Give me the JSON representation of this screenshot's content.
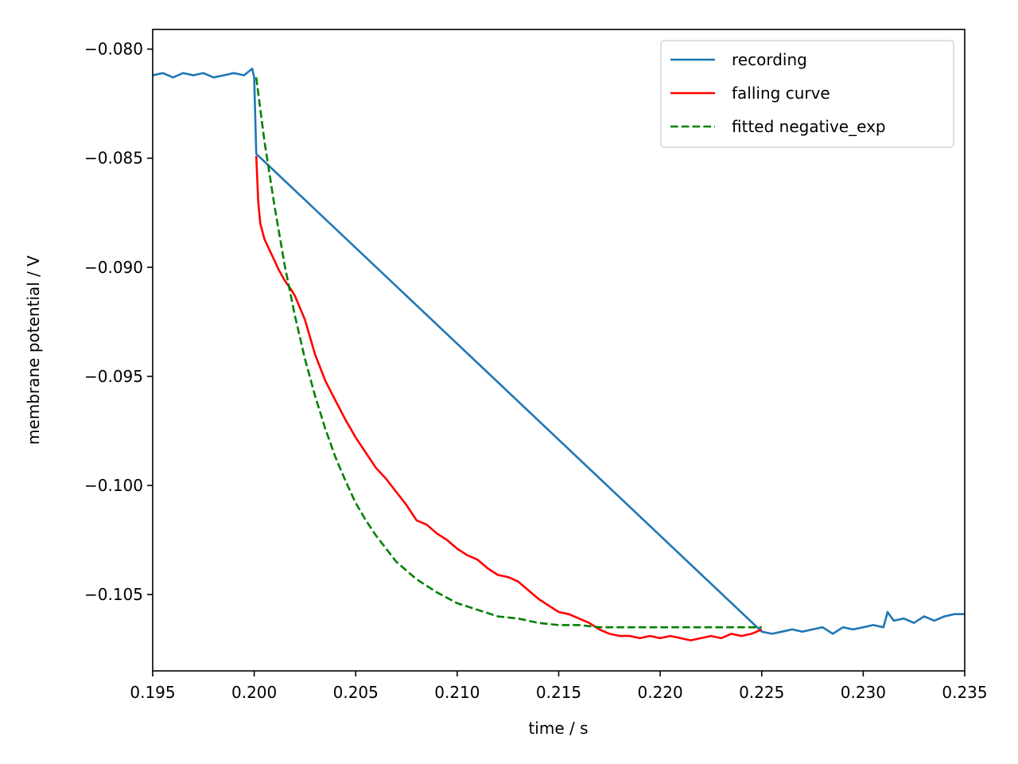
{
  "chart_data": {
    "type": "line",
    "xlabel": "time / s",
    "ylabel": "membrane potential / V",
    "xlim": [
      0.195,
      0.235
    ],
    "ylim": [
      -0.1085,
      -0.0791
    ],
    "xticks": [
      0.195,
      0.2,
      0.205,
      0.21,
      0.215,
      0.22,
      0.225,
      0.23,
      0.235
    ],
    "xtick_labels": [
      "0.195",
      "0.200",
      "0.205",
      "0.210",
      "0.215",
      "0.220",
      "0.225",
      "0.230",
      "0.235"
    ],
    "yticks": [
      -0.08,
      -0.085,
      -0.09,
      -0.095,
      -0.1,
      -0.105
    ],
    "ytick_labels": [
      "−0.080",
      "−0.085",
      "−0.090",
      "−0.095",
      "−0.100",
      "−0.105"
    ],
    "legend_position": "top-right",
    "grid": false,
    "series": [
      {
        "name": "recording",
        "color": "#1f77b4",
        "style": "solid",
        "x": [
          0.195,
          0.1955,
          0.196,
          0.1965,
          0.197,
          0.1975,
          0.198,
          0.1985,
          0.199,
          0.1995,
          0.1999,
          0.2,
          0.2001,
          0.225,
          0.2255,
          0.226,
          0.2265,
          0.227,
          0.2275,
          0.228,
          0.2285,
          0.229,
          0.2295,
          0.23,
          0.2305,
          0.231,
          0.2312,
          0.2315,
          0.232,
          0.2325,
          0.233,
          0.2335,
          0.234,
          0.2345,
          0.235
        ],
        "y": [
          -0.0812,
          -0.0811,
          -0.0813,
          -0.0811,
          -0.0812,
          -0.0811,
          -0.0813,
          -0.0812,
          -0.0811,
          -0.0812,
          -0.0809,
          -0.0813,
          -0.0848,
          -0.1067,
          -0.1068,
          -0.1067,
          -0.1066,
          -0.1067,
          -0.1066,
          -0.1065,
          -0.1068,
          -0.1065,
          -0.1066,
          -0.1065,
          -0.1064,
          -0.1065,
          -0.1058,
          -0.1062,
          -0.1061,
          -0.1063,
          -0.106,
          -0.1062,
          -0.106,
          -0.1059,
          -0.1059
        ]
      },
      {
        "name": "falling curve",
        "color": "#ff0000",
        "style": "solid",
        "x": [
          0.2001,
          0.2002,
          0.2003,
          0.2005,
          0.2008,
          0.201,
          0.2012,
          0.2015,
          0.2018,
          0.202,
          0.2025,
          0.203,
          0.2035,
          0.204,
          0.2045,
          0.205,
          0.2055,
          0.206,
          0.2065,
          0.207,
          0.2075,
          0.208,
          0.2085,
          0.209,
          0.2095,
          0.21,
          0.2105,
          0.211,
          0.2115,
          0.212,
          0.2125,
          0.213,
          0.2135,
          0.214,
          0.2145,
          0.215,
          0.2155,
          0.216,
          0.2165,
          0.217,
          0.2175,
          0.218,
          0.2185,
          0.219,
          0.2195,
          0.22,
          0.2205,
          0.221,
          0.2215,
          0.222,
          0.2225,
          0.223,
          0.2235,
          0.224,
          0.2245,
          0.225
        ],
        "y": [
          -0.0849,
          -0.087,
          -0.088,
          -0.0887,
          -0.0893,
          -0.0897,
          -0.0901,
          -0.0906,
          -0.091,
          -0.0913,
          -0.0924,
          -0.094,
          -0.0952,
          -0.0961,
          -0.097,
          -0.0978,
          -0.0985,
          -0.0992,
          -0.0997,
          -0.1003,
          -0.1009,
          -0.1016,
          -0.1018,
          -0.1022,
          -0.1025,
          -0.1029,
          -0.1032,
          -0.1034,
          -0.1038,
          -0.1041,
          -0.1042,
          -0.1044,
          -0.1048,
          -0.1052,
          -0.1055,
          -0.1058,
          -0.1059,
          -0.1061,
          -0.1063,
          -0.1066,
          -0.1068,
          -0.1069,
          -0.1069,
          -0.107,
          -0.1069,
          -0.107,
          -0.1069,
          -0.107,
          -0.1071,
          -0.107,
          -0.1069,
          -0.107,
          -0.1068,
          -0.1069,
          -0.1068,
          -0.1066
        ]
      },
      {
        "name": "fitted negative_exp",
        "color": "#008000",
        "style": "dashed",
        "x": [
          0.2001,
          0.2005,
          0.201,
          0.2015,
          0.202,
          0.2025,
          0.203,
          0.2035,
          0.204,
          0.2045,
          0.205,
          0.2055,
          0.206,
          0.207,
          0.208,
          0.209,
          0.21,
          0.211,
          0.212,
          0.213,
          0.214,
          0.215,
          0.216,
          0.217,
          0.218,
          0.219,
          0.22,
          0.221,
          0.222,
          0.223,
          0.224,
          0.225
        ],
        "y": [
          -0.0813,
          -0.0842,
          -0.0872,
          -0.0899,
          -0.0922,
          -0.0942,
          -0.0959,
          -0.0974,
          -0.0987,
          -0.0998,
          -0.1008,
          -0.1016,
          -0.1023,
          -0.1035,
          -0.1043,
          -0.1049,
          -0.1054,
          -0.1057,
          -0.106,
          -0.1061,
          -0.1063,
          -0.1064,
          -0.1064,
          -0.1065,
          -0.1065,
          -0.1065,
          -0.1065,
          -0.1065,
          -0.1065,
          -0.1065,
          -0.1065,
          -0.1065
        ]
      }
    ]
  }
}
